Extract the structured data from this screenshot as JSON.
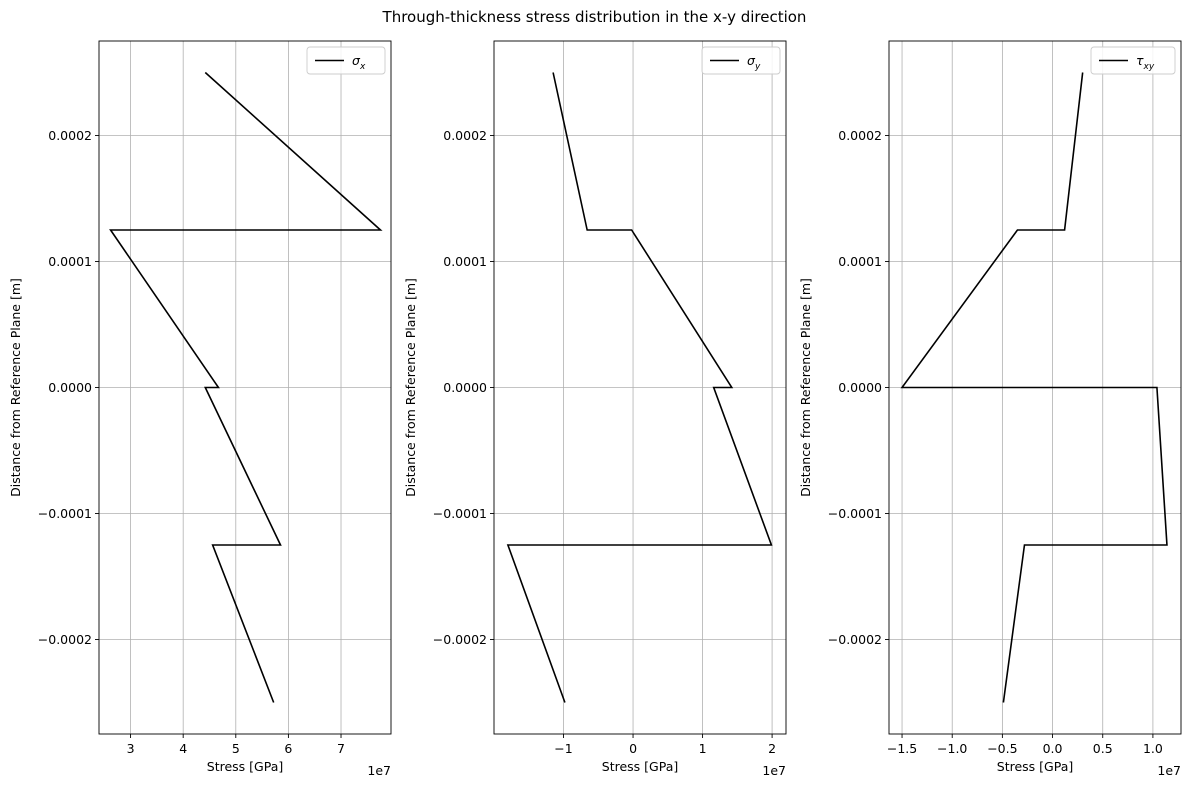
{
  "figure": {
    "title": "Through-thickness stress distribution in the x-y direction"
  },
  "chart_data": [
    {
      "type": "line",
      "xlabel": "Stress [GPa]",
      "ylabel": "Distance from Reference Plane [m]",
      "x_offset_text": "1e7",
      "x_scale": 10000000,
      "xlim": [
        2.4,
        7.95
      ],
      "ylim": [
        -0.000275,
        0.000275
      ],
      "xticks": [
        3,
        4,
        5,
        6,
        7
      ],
      "xtick_labels": [
        "3",
        "4",
        "5",
        "6",
        "7"
      ],
      "yticks": [
        0.0002,
        0.0001,
        0.0,
        -0.0001,
        -0.0002
      ],
      "ytick_labels": [
        "0.0002",
        "0.0001",
        "0.0000",
        "−0.0001",
        "−0.0002"
      ],
      "grid": true,
      "legend_position": "top-right",
      "series": [
        {
          "name": "σx",
          "legend_base": "σ",
          "legend_sub": "x",
          "color": "#000000",
          "x": [
            4.42,
            7.75,
            2.62,
            4.67,
            4.42,
            5.85,
            4.56,
            5.72
          ],
          "y": [
            0.00025,
            0.000125,
            0.000125,
            0.0,
            0.0,
            -0.000125,
            -0.000125,
            -0.00025
          ]
        }
      ]
    },
    {
      "type": "line",
      "xlabel": "Stress [GPa]",
      "ylabel": "Distance from Reference Plane [m]",
      "x_offset_text": "1e7",
      "x_scale": 10000000,
      "xlim": [
        -2.0,
        2.2
      ],
      "ylim": [
        -0.000275,
        0.000275
      ],
      "xticks": [
        -1,
        0,
        1,
        2
      ],
      "xtick_labels": [
        "−1",
        "0",
        "1",
        "2"
      ],
      "yticks": [
        0.0002,
        0.0001,
        0.0,
        -0.0001,
        -0.0002
      ],
      "ytick_labels": [
        "0.0002",
        "0.0001",
        "0.0000",
        "−0.0001",
        "−0.0002"
      ],
      "grid": true,
      "legend_position": "top-right",
      "series": [
        {
          "name": "σy",
          "legend_base": "σ",
          "legend_sub": "y",
          "color": "#000000",
          "x": [
            -1.15,
            -0.66,
            -0.02,
            1.42,
            1.16,
            1.99,
            -1.8,
            -0.98
          ],
          "y": [
            0.00025,
            0.000125,
            0.000125,
            0.0,
            0.0,
            -0.000125,
            -0.000125,
            -0.00025
          ]
        }
      ]
    },
    {
      "type": "line",
      "xlabel": "Stress [GPa]",
      "ylabel": "Distance from Reference Plane [m]",
      "x_offset_text": "1e7",
      "x_scale": 10000000,
      "xlim": [
        -1.63,
        1.28
      ],
      "ylim": [
        -0.000275,
        0.000275
      ],
      "xticks": [
        -1.5,
        -1.0,
        -0.5,
        0.0,
        0.5,
        1.0
      ],
      "xtick_labels": [
        "−1.5",
        "−1.0",
        "−0.5",
        "0.0",
        "0.5",
        "1.0"
      ],
      "yticks": [
        0.0002,
        0.0001,
        0.0,
        -0.0001,
        -0.0002
      ],
      "ytick_labels": [
        "0.0002",
        "0.0001",
        "0.0000",
        "−0.0001",
        "−0.0002"
      ],
      "grid": true,
      "legend_position": "top-right",
      "series": [
        {
          "name": "τxy",
          "legend_base": "τ",
          "legend_sub": "xy",
          "color": "#000000",
          "x": [
            0.3,
            0.12,
            -0.35,
            -1.5,
            1.04,
            1.14,
            -0.28,
            -0.49
          ],
          "y": [
            0.00025,
            0.000125,
            0.000125,
            0.0,
            0.0,
            -0.000125,
            -0.000125,
            -0.00025
          ]
        }
      ]
    }
  ]
}
